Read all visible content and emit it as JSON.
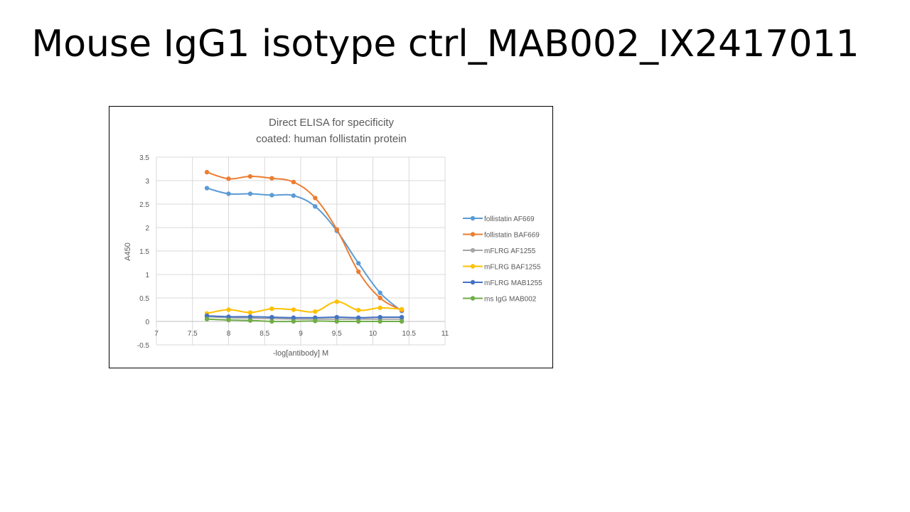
{
  "slide": {
    "title": "Mouse IgG1 isotype ctrl_MAB002_IX2417011"
  },
  "chart_data": {
    "type": "line",
    "title": "Direct ELISA for specificity",
    "subtitle": "coated: human follistatin protein",
    "xlabel": "-log[antibody] M",
    "ylabel": "A450",
    "xlim": [
      7,
      11
    ],
    "ylim": [
      -0.5,
      3.5
    ],
    "x_ticks": [
      "7",
      "7.5",
      "8",
      "8.5",
      "9",
      "9.5",
      "10",
      "10.5",
      "11"
    ],
    "y_ticks": [
      "-0.5",
      "0",
      "0.5",
      "1",
      "1.5",
      "2",
      "2.5",
      "3",
      "3.5"
    ],
    "grid": true,
    "legend_position": "right",
    "x": [
      7.7,
      8.0,
      8.3,
      8.6,
      8.9,
      9.2,
      9.5,
      9.8,
      10.1,
      10.4
    ],
    "series": [
      {
        "name": "follistatin AF669",
        "color": "#5b9bd5",
        "values": [
          2.84,
          2.72,
          2.72,
          2.69,
          2.68,
          2.45,
          1.93,
          1.24,
          0.61,
          0.22
        ]
      },
      {
        "name": "follistatin BAF669",
        "color": "#ed7d31",
        "values": [
          3.18,
          3.04,
          3.09,
          3.05,
          2.97,
          2.63,
          1.96,
          1.06,
          0.5,
          0.24
        ]
      },
      {
        "name": "mFLRG AF1255",
        "color": "#a5a5a5",
        "values": [
          0.1,
          0.08,
          0.07,
          0.06,
          0.05,
          0.05,
          0.05,
          0.05,
          0.05,
          0.05
        ]
      },
      {
        "name": "mFLRG BAF1255",
        "color": "#ffc000",
        "values": [
          0.17,
          0.25,
          0.19,
          0.27,
          0.25,
          0.21,
          0.42,
          0.24,
          0.29,
          0.26
        ]
      },
      {
        "name": "mFLRG MAB1255",
        "color": "#4472c4",
        "values": [
          0.12,
          0.1,
          0.1,
          0.09,
          0.08,
          0.08,
          0.09,
          0.08,
          0.09,
          0.09
        ]
      },
      {
        "name": "ms IgG MAB002",
        "color": "#70ad47",
        "values": [
          0.05,
          0.03,
          0.02,
          0.0,
          0.0,
          0.01,
          0.0,
          0.0,
          0.0,
          0.0
        ]
      }
    ]
  }
}
